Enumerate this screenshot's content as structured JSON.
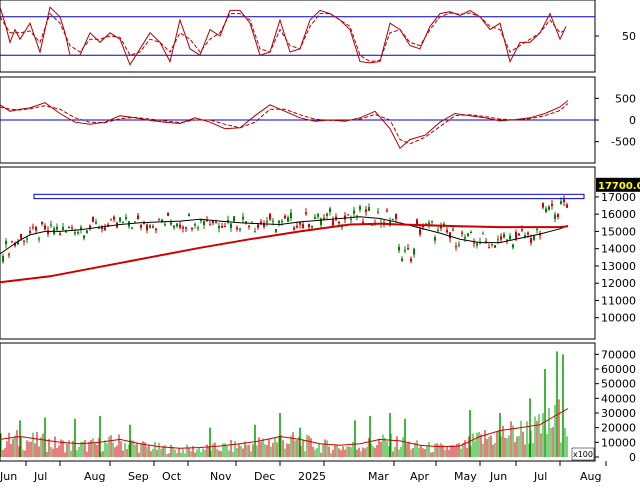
{
  "chart_data": [
    {
      "type": "line",
      "panel": "stochastic",
      "ylim": [
        0,
        100
      ],
      "yticks": [
        {
          "value": 50,
          "label": "50"
        }
      ],
      "reference_lines": [
        80,
        20
      ],
      "series": [
        {
          "style": "solid",
          "color": "#b00000",
          "x": [
            0,
            5,
            10,
            15,
            20,
            30,
            40,
            50,
            60,
            65,
            70,
            80,
            90,
            100,
            110,
            120,
            130,
            140,
            150,
            160,
            170,
            180,
            190,
            200,
            210,
            220,
            230,
            240,
            250,
            260,
            270,
            280,
            290,
            300,
            310,
            320,
            330,
            340,
            350,
            360,
            370,
            380,
            390,
            400,
            410,
            420,
            430,
            440,
            450,
            460,
            470,
            480,
            490,
            500,
            510,
            520,
            530,
            540,
            550,
            560,
            566
          ],
          "values": [
            95,
            70,
            40,
            60,
            45,
            70,
            25,
            95,
            80,
            55,
            20,
            20,
            55,
            40,
            55,
            45,
            5,
            30,
            55,
            40,
            10,
            75,
            30,
            20,
            60,
            50,
            90,
            90,
            70,
            20,
            25,
            75,
            25,
            30,
            75,
            90,
            85,
            75,
            60,
            10,
            8,
            10,
            70,
            60,
            35,
            30,
            65,
            85,
            88,
            82,
            90,
            80,
            60,
            70,
            10,
            40,
            40,
            55,
            85,
            45,
            65
          ]
        },
        {
          "style": "dashed",
          "color": "#b00000",
          "x": [
            0,
            10,
            20,
            30,
            40,
            50,
            60,
            70,
            80,
            90,
            100,
            110,
            120,
            130,
            140,
            150,
            160,
            170,
            180,
            190,
            200,
            210,
            220,
            230,
            240,
            250,
            260,
            270,
            280,
            290,
            300,
            310,
            320,
            330,
            340,
            350,
            360,
            370,
            380,
            390,
            400,
            410,
            420,
            430,
            440,
            450,
            460,
            470,
            480,
            490,
            500,
            510,
            520,
            530,
            540,
            550,
            560,
            566
          ],
          "values": [
            80,
            55,
            55,
            58,
            40,
            85,
            70,
            35,
            25,
            45,
            45,
            50,
            48,
            20,
            25,
            45,
            40,
            25,
            55,
            45,
            25,
            45,
            55,
            85,
            85,
            75,
            30,
            25,
            60,
            35,
            30,
            65,
            85,
            85,
            75,
            65,
            20,
            10,
            12,
            55,
            60,
            40,
            35,
            60,
            80,
            86,
            84,
            86,
            80,
            65,
            60,
            25,
            35,
            45,
            55,
            75,
            55,
            60
          ]
        }
      ]
    },
    {
      "type": "line",
      "panel": "macd",
      "ylim": [
        -900,
        900
      ],
      "yticks": [
        {
          "value": 500,
          "label": "500"
        },
        {
          "value": 0,
          "label": "0"
        },
        {
          "value": -500,
          "label": "-500"
        }
      ],
      "reference_lines": [
        0
      ],
      "series": [
        {
          "style": "solid",
          "color": "#b00000",
          "x": [
            0,
            10,
            20,
            30,
            45,
            60,
            75,
            90,
            105,
            120,
            135,
            150,
            165,
            180,
            195,
            210,
            225,
            240,
            255,
            270,
            285,
            300,
            315,
            330,
            345,
            360,
            375,
            390,
            400,
            410,
            425,
            440,
            455,
            470,
            485,
            500,
            515,
            530,
            545,
            560,
            568
          ],
          "values": [
            350,
            200,
            250,
            280,
            400,
            150,
            -50,
            -100,
            -50,
            100,
            50,
            -10,
            -50,
            -80,
            50,
            -50,
            -200,
            -180,
            100,
            350,
            200,
            50,
            -30,
            0,
            -30,
            50,
            200,
            -200,
            -650,
            -450,
            -350,
            -50,
            150,
            100,
            50,
            -20,
            10,
            50,
            150,
            300,
            450
          ]
        },
        {
          "style": "dashed",
          "color": "#b00000",
          "x": [
            0,
            10,
            20,
            30,
            45,
            60,
            75,
            90,
            105,
            120,
            135,
            150,
            165,
            180,
            195,
            210,
            225,
            240,
            255,
            270,
            285,
            300,
            315,
            330,
            345,
            360,
            375,
            390,
            400,
            410,
            425,
            440,
            455,
            470,
            485,
            500,
            515,
            530,
            545,
            560,
            568
          ],
          "values": [
            300,
            250,
            230,
            260,
            330,
            250,
            50,
            -50,
            -60,
            30,
            60,
            20,
            -20,
            -60,
            0,
            0,
            -100,
            -180,
            -50,
            250,
            250,
            120,
            20,
            -10,
            -10,
            20,
            130,
            0,
            -450,
            -550,
            -400,
            -150,
            100,
            120,
            80,
            20,
            0,
            30,
            100,
            220,
            380
          ]
        }
      ]
    },
    {
      "type": "line",
      "panel": "price",
      "ylim": [
        9000,
        18500
      ],
      "yticks": [
        {
          "value": 17000,
          "label": "17000"
        },
        {
          "value": 16000,
          "label": "16000"
        },
        {
          "value": 15000,
          "label": "15000"
        },
        {
          "value": 14000,
          "label": "14000"
        },
        {
          "value": 13000,
          "label": "13000"
        },
        {
          "value": 12000,
          "label": "12000"
        },
        {
          "value": 11000,
          "label": "11000"
        },
        {
          "value": 10000,
          "label": "10000"
        }
      ],
      "current_price_label": "17700.00",
      "current_price": 17700,
      "resistance_band": [
        16900,
        17150
      ],
      "series": [
        {
          "style": "solid",
          "color": "#000000",
          "x": [
            0,
            10,
            20,
            30,
            45,
            60,
            80,
            100,
            120,
            140,
            160,
            180,
            200,
            220,
            240,
            260,
            280,
            300,
            320,
            340,
            360,
            380,
            400,
            420,
            440,
            460,
            480,
            500,
            520,
            540,
            560,
            568
          ],
          "values": [
            13700,
            14100,
            14500,
            14800,
            15000,
            15000,
            15100,
            15250,
            15400,
            15500,
            15550,
            15600,
            15700,
            15600,
            15500,
            15450,
            15400,
            15550,
            15650,
            15750,
            15850,
            15750,
            15500,
            15200,
            14900,
            14550,
            14350,
            14350,
            14600,
            14850,
            15150,
            15350
          ]
        },
        {
          "style": "solid",
          "color": "#cc0000",
          "width": 2,
          "x": [
            0,
            50,
            100,
            150,
            200,
            250,
            300,
            350,
            380,
            400,
            430,
            460,
            500,
            530,
            560,
            568
          ],
          "values": [
            12050,
            12400,
            12950,
            13500,
            14050,
            14550,
            15000,
            15400,
            15450,
            15400,
            15350,
            15300,
            15250,
            15250,
            15250,
            15300
          ]
        }
      ]
    },
    {
      "type": "bar",
      "panel": "volume",
      "ylim": [
        0,
        75000
      ],
      "unit_badge": "x100",
      "yticks": [
        {
          "value": 70000,
          "label": "70000"
        },
        {
          "value": 60000,
          "label": "60000"
        },
        {
          "value": 50000,
          "label": "50000"
        },
        {
          "value": 40000,
          "label": "40000"
        },
        {
          "value": 30000,
          "label": "30000"
        },
        {
          "value": 20000,
          "label": "20000"
        },
        {
          "value": 10000,
          "label": "10000"
        },
        {
          "value": 0,
          "label": "0"
        }
      ],
      "series": [
        {
          "style": "solid",
          "color": "#cc0000",
          "x": [
            0,
            20,
            40,
            60,
            80,
            100,
            120,
            140,
            160,
            180,
            200,
            220,
            240,
            260,
            280,
            300,
            320,
            340,
            360,
            380,
            400,
            420,
            440,
            460,
            480,
            500,
            520,
            540,
            560,
            568
          ],
          "values": [
            12000,
            14000,
            12000,
            10000,
            9000,
            10000,
            12000,
            9000,
            7000,
            6000,
            6500,
            7500,
            9000,
            11000,
            14000,
            12000,
            9000,
            8000,
            9000,
            12000,
            11000,
            8000,
            7000,
            7500,
            14000,
            18000,
            20000,
            22000,
            30000,
            33000
          ]
        }
      ],
      "spikes": [
        {
          "x": 20,
          "value": 25000
        },
        {
          "x": 45,
          "value": 27000
        },
        {
          "x": 75,
          "value": 26000
        },
        {
          "x": 100,
          "value": 28000
        },
        {
          "x": 130,
          "value": 22000
        },
        {
          "x": 210,
          "value": 20000
        },
        {
          "x": 255,
          "value": 22000
        },
        {
          "x": 280,
          "value": 30000
        },
        {
          "x": 300,
          "value": 20000
        },
        {
          "x": 355,
          "value": 25000
        },
        {
          "x": 370,
          "value": 28000
        },
        {
          "x": 390,
          "value": 30000
        },
        {
          "x": 405,
          "value": 26000
        },
        {
          "x": 470,
          "value": 32000
        },
        {
          "x": 500,
          "value": 30000
        },
        {
          "x": 530,
          "value": 40000
        },
        {
          "x": 545,
          "value": 60000
        },
        {
          "x": 557,
          "value": 72000
        },
        {
          "x": 563,
          "value": 70000
        }
      ]
    }
  ],
  "x_axis": {
    "labels": [
      {
        "text": "Jun",
        "x": 0
      },
      {
        "text": "Jul",
        "x": 34
      },
      {
        "text": "Aug",
        "x": 84
      },
      {
        "text": "Sep",
        "x": 128
      },
      {
        "text": "Oct",
        "x": 162
      },
      {
        "text": "Nov",
        "x": 210
      },
      {
        "text": "Dec",
        "x": 254
      },
      {
        "text": "2025",
        "x": 298
      },
      {
        "text": "Mar",
        "x": 368
      },
      {
        "text": "Apr",
        "x": 410
      },
      {
        "text": "May",
        "x": 454
      },
      {
        "text": "Jun",
        "x": 490
      },
      {
        "text": "Jul",
        "x": 534
      },
      {
        "text": "Aug",
        "x": 580
      }
    ]
  }
}
